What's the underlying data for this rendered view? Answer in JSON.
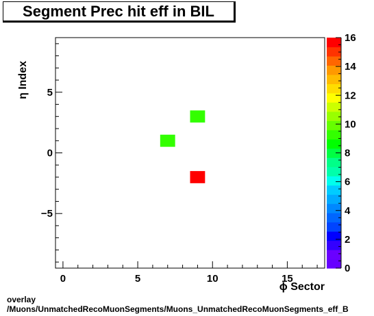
{
  "chart_data": {
    "type": "heatmap",
    "title": "Segment Prec hit eff in BIL",
    "xlabel": "ϕ Sector",
    "ylabel": "η Index",
    "xlim": [
      -0.5,
      17.5
    ],
    "ylim": [
      -9.5,
      9.5
    ],
    "x_ticks": [
      0,
      5,
      10,
      15
    ],
    "y_ticks": [
      -5,
      0,
      5
    ],
    "cells": [
      {
        "x": 9,
        "y": 3,
        "value": 9
      },
      {
        "x": 7,
        "y": 1,
        "value": 9
      },
      {
        "x": 9,
        "y": -2,
        "value": 16
      }
    ],
    "colorbar": {
      "min": 0,
      "max": 16,
      "ticks": [
        0,
        2,
        4,
        6,
        8,
        10,
        12,
        14,
        16
      ],
      "colors": [
        "#6600ff",
        "#6a00ff",
        "#3300ff",
        "#0000ff",
        "#0044ff",
        "#0066ff",
        "#0088ff",
        "#00aaff",
        "#00ccff",
        "#00ffee",
        "#00ffaa",
        "#00ff88",
        "#00ff44",
        "#00ff00",
        "#33ff00",
        "#66ff00",
        "#99ff00",
        "#ccff00",
        "#ffff00",
        "#ffdd00",
        "#ffbb00",
        "#ff9900",
        "#ff6600",
        "#ff3300",
        "#ff0000"
      ]
    }
  },
  "footer": {
    "line1": "overlay",
    "line2": "/Muons/UnmatchedRecoMuonSegments/Muons_UnmatchedRecoMuonSegments_eff_B"
  }
}
